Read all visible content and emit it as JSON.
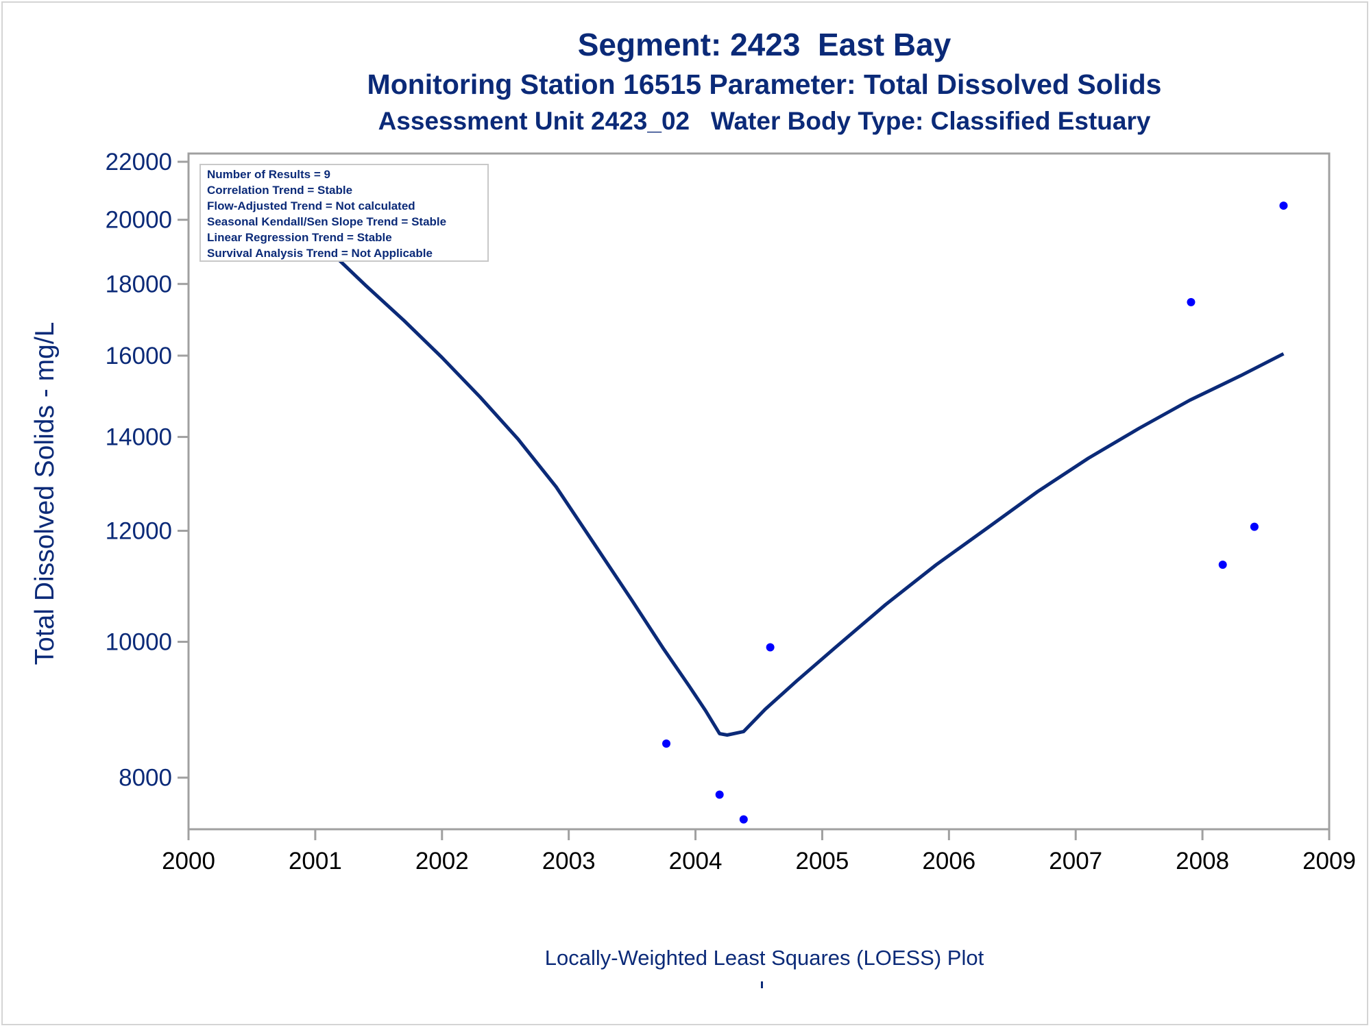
{
  "titles": {
    "line1": "Segment: 2423  East Bay",
    "line2": "Monitoring Station 16515 Parameter: Total Dissolved Solids",
    "line3": "Assessment Unit 2423_02   Water Body Type: Classified Estuary"
  },
  "footnote": "Locally-Weighted Least Squares (LOESS) Plot",
  "stats_box": [
    "Number of Results = 9",
    "Correlation Trend = Stable",
    "Flow-Adjusted Trend = Not calculated",
    "Seasonal Kendall/Sen Slope Trend = Stable",
    "Linear Regression Trend = Stable",
    "Survival Analysis Trend = Not Applicable"
  ],
  "colors": {
    "text": "#0b2a78",
    "points": "#0000ff",
    "loess_line": "#0b2a78",
    "axis": "#a0a0a0"
  },
  "chart_data": {
    "type": "scatter",
    "title": "Segment: 2423  East Bay",
    "ylabel": "Total Dissolved Solids - mg/L",
    "xlabel": "",
    "y_scale": "log",
    "xlim": [
      2000,
      2009
    ],
    "ylim": [
      7350,
      22300
    ],
    "x_ticks": [
      2000,
      2001,
      2002,
      2003,
      2004,
      2005,
      2006,
      2007,
      2008,
      2009
    ],
    "y_ticks": [
      8000,
      10000,
      12000,
      14000,
      16000,
      18000,
      20000,
      22000
    ],
    "x_tick_labels": [
      "2000",
      "2001",
      "2002",
      "2003",
      "2004",
      "2005",
      "2006",
      "2007",
      "2008",
      "2009"
    ],
    "y_tick_labels": [
      "8000",
      "10000",
      "12000",
      "14000",
      "16000",
      "18000",
      "20000",
      "22000"
    ],
    "grid": false,
    "legend": "top-left",
    "series": [
      {
        "type": "scatter",
        "x": [
          2000.53,
          2003.77,
          2004.19,
          2004.38,
          2004.59,
          2007.91,
          2008.16,
          2008.41,
          2008.64
        ],
        "y": [
          21700,
          8460,
          7780,
          7470,
          9910,
          17470,
          11350,
          12080,
          20470
        ]
      },
      {
        "type": "line",
        "x": [
          2000.53,
          2000.8,
          2001.1,
          2001.4,
          2001.7,
          2002.0,
          2002.3,
          2002.6,
          2002.9,
          2003.2,
          2003.5,
          2003.75,
          2003.95,
          2004.08,
          2004.19,
          2004.25,
          2004.38,
          2004.55,
          2004.8,
          2005.1,
          2005.5,
          2005.9,
          2006.3,
          2006.7,
          2007.1,
          2007.5,
          2007.9,
          2008.3,
          2008.64
        ],
        "y": [
          21250,
          20300,
          19050,
          17950,
          16950,
          15950,
          14950,
          13950,
          12900,
          11750,
          10700,
          9880,
          9300,
          8930,
          8600,
          8580,
          8630,
          8950,
          9380,
          9900,
          10630,
          11350,
          12050,
          12800,
          13520,
          14200,
          14870,
          15480,
          16050
        ]
      }
    ]
  }
}
